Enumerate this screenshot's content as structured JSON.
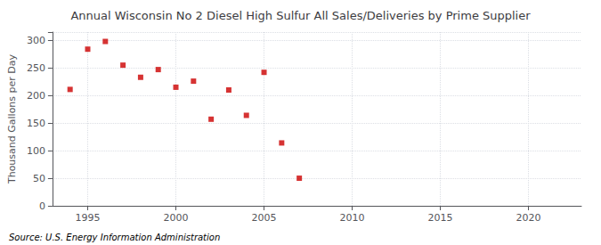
{
  "chart_data": {
    "type": "scatter",
    "title": "Annual Wisconsin No 2 Diesel High Sulfur All Sales/Deliveries by Prime Supplier",
    "ylabel": "Thousand Gallons per Day",
    "annotations": [
      "Source: U.S. Energy Information Administration"
    ],
    "x": [
      1994,
      1995,
      1996,
      1997,
      1998,
      1999,
      2000,
      2001,
      2002,
      2003,
      2004,
      2005,
      2006,
      2007
    ],
    "values": [
      211,
      284,
      298,
      255,
      233,
      247,
      215,
      226,
      157,
      210,
      164,
      242,
      114,
      50
    ],
    "color": "#cc0000",
    "marker": "square",
    "xlim": [
      1993,
      2023
    ],
    "xticks": [
      1995,
      2000,
      2005,
      2010,
      2015,
      2020
    ],
    "ylim": [
      0,
      315
    ],
    "yticks": [
      0,
      50,
      100,
      150,
      200,
      250,
      300
    ],
    "grid": true
  }
}
